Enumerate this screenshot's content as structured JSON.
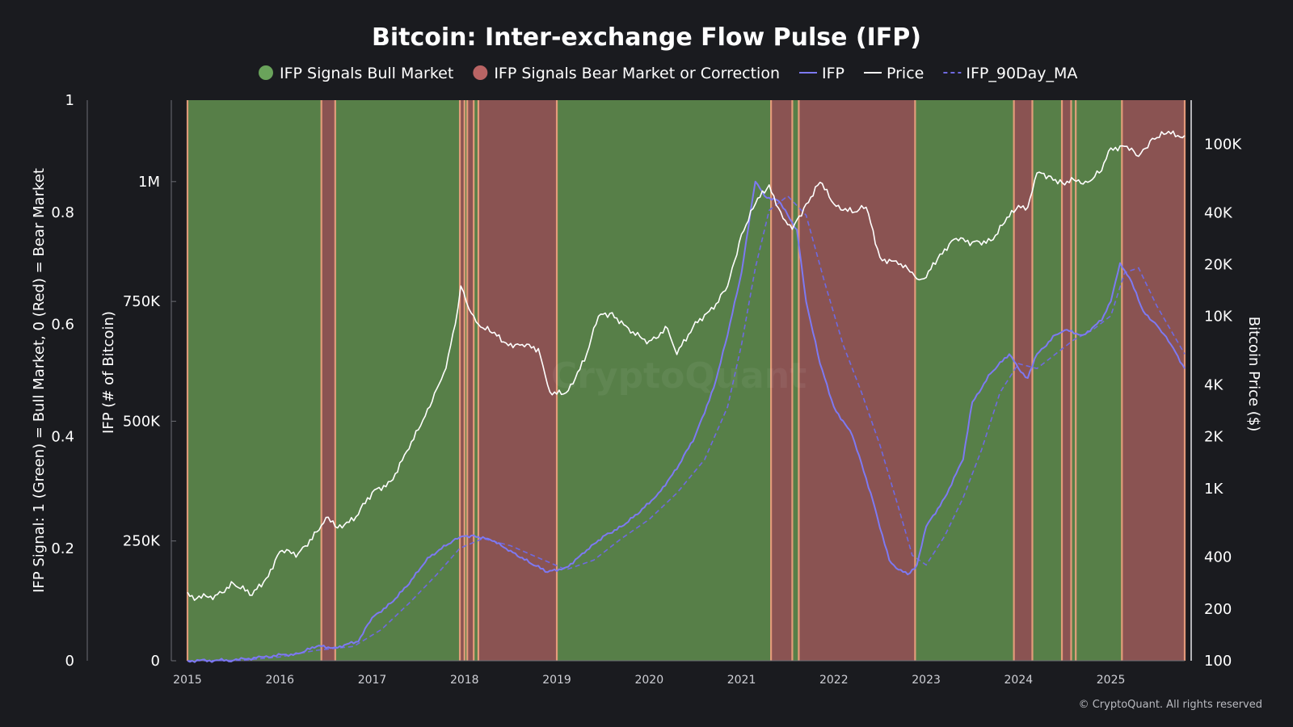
{
  "chart_data": {
    "type": "line",
    "title": "Bitcoin: Inter-exchange Flow Pulse (IFP)",
    "legend": [
      {
        "label": "IFP Signals Bull Market",
        "kind": "dot",
        "color": "#6aa35b"
      },
      {
        "label": "IFP Signals Bear Market or Correction",
        "kind": "dot",
        "color": "#b96464"
      },
      {
        "label": "IFP",
        "kind": "line",
        "color": "#7d79f2"
      },
      {
        "label": "Price",
        "kind": "line",
        "color": "#ffffff"
      },
      {
        "label": "IFP_90Day_MA",
        "kind": "dashed",
        "color": "#6f69e0"
      }
    ],
    "signal_axis": {
      "label": "IFP Signal: 1 (Green) = Bull Market, 0 (Red) = Bear Market",
      "ticks": [
        "0",
        "0.2",
        "0.4",
        "0.6",
        "0.8",
        "1"
      ],
      "range": [
        0,
        1
      ]
    },
    "ifp_axis": {
      "label": "IFP (# of Bitcoin)",
      "ticks": [
        "0",
        "250K",
        "500K",
        "750K",
        "1M"
      ],
      "tick_values": [
        0,
        250000,
        500000,
        750000,
        1000000
      ],
      "range": [
        0,
        1170000
      ]
    },
    "price_axis": {
      "label": "Bitcoin Price ($)",
      "scale": "log",
      "ticks": [
        "100",
        "200",
        "400",
        "1K",
        "2K",
        "4K",
        "10K",
        "20K",
        "40K",
        "100K"
      ],
      "tick_values": [
        100,
        200,
        400,
        1000,
        2000,
        4000,
        10000,
        20000,
        40000,
        100000
      ],
      "range": [
        100,
        180000
      ]
    },
    "x_axis": {
      "range": [
        2015.0,
        2025.8
      ],
      "ticks": [
        "2015",
        "2016",
        "2017",
        "2018",
        "2019",
        "2020",
        "2021",
        "2022",
        "2023",
        "2024",
        "2025"
      ],
      "tick_values": [
        2015,
        2016,
        2017,
        2018,
        2019,
        2020,
        2021,
        2022,
        2023,
        2024,
        2025
      ]
    },
    "signal_periods": [
      {
        "start": 2015.0,
        "end": 2016.45,
        "signal": "bull"
      },
      {
        "start": 2016.45,
        "end": 2016.6,
        "signal": "bear"
      },
      {
        "start": 2016.6,
        "end": 2017.95,
        "signal": "bull"
      },
      {
        "start": 2017.95,
        "end": 2018.0,
        "signal": "bear"
      },
      {
        "start": 2018.0,
        "end": 2018.03,
        "signal": "bull"
      },
      {
        "start": 2018.03,
        "end": 2018.1,
        "signal": "bear"
      },
      {
        "start": 2018.1,
        "end": 2018.15,
        "signal": "bull"
      },
      {
        "start": 2018.15,
        "end": 2019.0,
        "signal": "bear"
      },
      {
        "start": 2019.0,
        "end": 2021.32,
        "signal": "bull"
      },
      {
        "start": 2021.32,
        "end": 2021.55,
        "signal": "bear"
      },
      {
        "start": 2021.55,
        "end": 2021.62,
        "signal": "bull"
      },
      {
        "start": 2021.62,
        "end": 2022.88,
        "signal": "bear"
      },
      {
        "start": 2022.88,
        "end": 2023.95,
        "signal": "bull"
      },
      {
        "start": 2023.95,
        "end": 2024.15,
        "signal": "bear"
      },
      {
        "start": 2024.15,
        "end": 2024.47,
        "signal": "bull"
      },
      {
        "start": 2024.47,
        "end": 2024.57,
        "signal": "bear"
      },
      {
        "start": 2024.57,
        "end": 2024.62,
        "signal": "bull"
      },
      {
        "start": 2024.62,
        "end": 2025.12,
        "signal": "bull"
      },
      {
        "start": 2025.12,
        "end": 2025.8,
        "signal": "bear"
      }
    ],
    "ifp_series": {
      "name": "IFP",
      "x": [
        2015.0,
        2015.5,
        2015.8,
        2016.2,
        2016.4,
        2016.6,
        2016.85,
        2017.0,
        2017.2,
        2017.4,
        2017.6,
        2017.8,
        2017.95,
        2018.1,
        2018.3,
        2018.5,
        2018.7,
        2018.9,
        2019.1,
        2019.3,
        2019.5,
        2019.7,
        2019.9,
        2020.1,
        2020.3,
        2020.5,
        2020.7,
        2020.85,
        2021.0,
        2021.1,
        2021.15,
        2021.25,
        2021.4,
        2021.6,
        2021.7,
        2021.85,
        2022.0,
        2022.2,
        2022.4,
        2022.6,
        2022.7,
        2022.8,
        2022.9,
        2023.0,
        2023.2,
        2023.4,
        2023.5,
        2023.7,
        2023.9,
        2024.0,
        2024.1,
        2024.2,
        2024.4,
        2024.5,
        2024.7,
        2024.9,
        2025.0,
        2025.1,
        2025.2,
        2025.35,
        2025.5,
        2025.65,
        2025.8
      ],
      "values": [
        0,
        1000,
        8000,
        15000,
        30000,
        28000,
        40000,
        90000,
        120000,
        160000,
        215000,
        240000,
        258000,
        262000,
        250000,
        230000,
        205000,
        185000,
        195000,
        225000,
        260000,
        280000,
        310000,
        350000,
        400000,
        470000,
        570000,
        680000,
        810000,
        940000,
        1000000,
        970000,
        960000,
        900000,
        750000,
        620000,
        530000,
        470000,
        350000,
        210000,
        190000,
        180000,
        200000,
        280000,
        340000,
        420000,
        540000,
        600000,
        640000,
        610000,
        590000,
        640000,
        680000,
        690000,
        680000,
        710000,
        750000,
        830000,
        800000,
        730000,
        700000,
        660000,
        610000
      ]
    },
    "ma_series": {
      "name": "IFP_90Day_MA",
      "x": [
        2015.0,
        2015.6,
        2016.0,
        2016.4,
        2016.8,
        2017.1,
        2017.4,
        2017.7,
        2017.95,
        2018.2,
        2018.5,
        2018.8,
        2019.1,
        2019.4,
        2019.7,
        2020.0,
        2020.3,
        2020.6,
        2020.85,
        2021.0,
        2021.15,
        2021.3,
        2021.5,
        2021.7,
        2021.9,
        2022.1,
        2022.3,
        2022.5,
        2022.7,
        2022.85,
        2023.0,
        2023.2,
        2023.4,
        2023.6,
        2023.8,
        2024.0,
        2024.2,
        2024.4,
        2024.6,
        2024.8,
        2025.0,
        2025.15,
        2025.3,
        2025.5,
        2025.8
      ],
      "values": [
        0,
        1000,
        8000,
        22000,
        30000,
        65000,
        120000,
        180000,
        235000,
        255000,
        240000,
        215000,
        190000,
        210000,
        255000,
        295000,
        350000,
        420000,
        530000,
        660000,
        820000,
        940000,
        970000,
        930000,
        790000,
        660000,
        560000,
        450000,
        320000,
        220000,
        200000,
        260000,
        340000,
        440000,
        560000,
        620000,
        610000,
        640000,
        670000,
        690000,
        720000,
        810000,
        820000,
        740000,
        640000
      ]
    },
    "price_series": {
      "name": "Price",
      "x": [
        2015.0,
        2015.1,
        2015.3,
        2015.5,
        2015.7,
        2015.85,
        2016.0,
        2016.2,
        2016.4,
        2016.5,
        2016.6,
        2016.8,
        2017.0,
        2017.2,
        2017.4,
        2017.55,
        2017.7,
        2017.8,
        2017.9,
        2017.96,
        2018.05,
        2018.15,
        2018.3,
        2018.45,
        2018.6,
        2018.8,
        2018.9,
        2018.95,
        2019.1,
        2019.3,
        2019.45,
        2019.6,
        2019.8,
        2020.0,
        2020.2,
        2020.3,
        2020.5,
        2020.7,
        2020.85,
        2021.0,
        2021.15,
        2021.3,
        2021.45,
        2021.55,
        2021.7,
        2021.85,
        2022.0,
        2022.2,
        2022.35,
        2022.5,
        2022.7,
        2022.85,
        2022.9,
        2023.0,
        2023.15,
        2023.3,
        2023.5,
        2023.7,
        2023.85,
        2024.0,
        2024.1,
        2024.2,
        2024.35,
        2024.5,
        2024.6,
        2024.75,
        2024.9,
        2025.0,
        2025.15,
        2025.3,
        2025.45,
        2025.6,
        2025.8
      ],
      "values": [
        250,
        230,
        240,
        280,
        240,
        300,
        430,
        420,
        560,
        680,
        600,
        650,
        950,
        1100,
        1700,
        2500,
        3800,
        5000,
        9000,
        15000,
        11000,
        9000,
        8000,
        7000,
        6800,
        6500,
        4000,
        3500,
        3600,
        5500,
        10000,
        10500,
        8000,
        7200,
        8500,
        6000,
        9300,
        11000,
        15000,
        30000,
        45000,
        58000,
        37000,
        32000,
        45000,
        60000,
        45000,
        40000,
        43000,
        22000,
        20000,
        18000,
        16500,
        16800,
        23000,
        28000,
        27000,
        27500,
        35000,
        44000,
        43000,
        68000,
        65000,
        58000,
        62000,
        60000,
        70000,
        95000,
        97000,
        85000,
        108000,
        115000,
        112000
      ]
    }
  },
  "watermark": "CryptoQuant",
  "copyright": "© CryptoQuant. All rights reserved",
  "colors": {
    "background": "#1a1b1f",
    "bull_fill": "#577f48",
    "bear_fill": "#8a5352",
    "boundary": "#f0a27f",
    "ifp": "#7d79f2",
    "ma": "#6f69e0",
    "price": "#ffffff"
  }
}
